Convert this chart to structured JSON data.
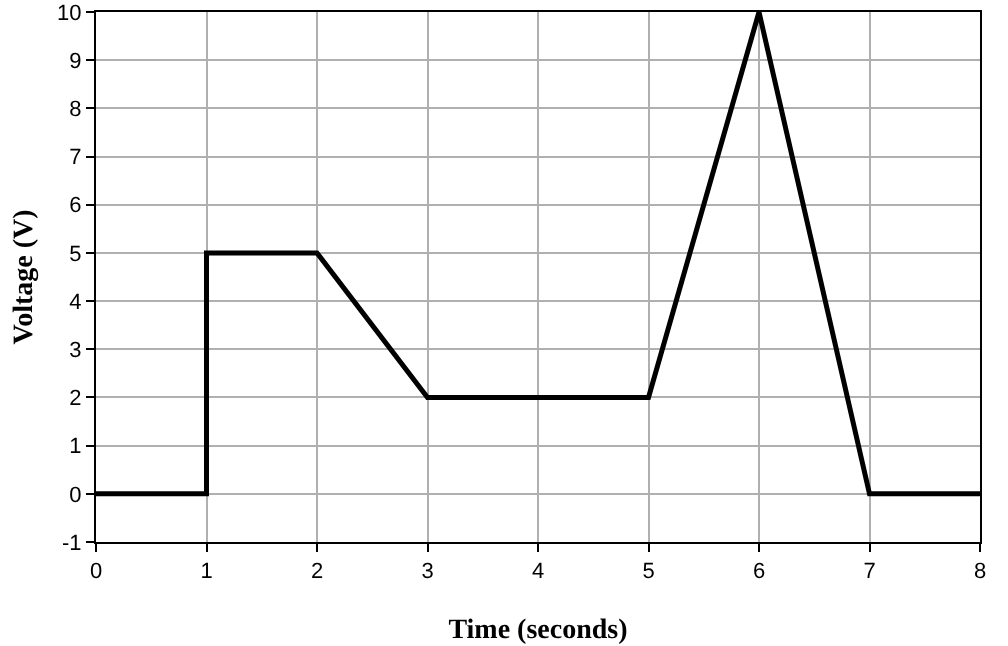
{
  "chart_data": {
    "type": "line",
    "xlabel": "Time (seconds)",
    "ylabel": "Voltage (V)",
    "series": [
      {
        "color": "#000000",
        "x": [
          0,
          1,
          1,
          2,
          3,
          5,
          6,
          7,
          8
        ],
        "values": [
          0,
          0,
          5,
          5,
          2,
          2,
          10,
          0,
          0
        ]
      }
    ],
    "xlim": [
      0,
      8
    ],
    "xticks": [
      0,
      1,
      2,
      3,
      4,
      5,
      6,
      7,
      8
    ],
    "ylim": [
      -1,
      10
    ],
    "yticks": [
      -1,
      0,
      1,
      2,
      3,
      4,
      5,
      6,
      7,
      8,
      9,
      10
    ],
    "grid": true,
    "marker": "none",
    "line_style": "solid"
  }
}
